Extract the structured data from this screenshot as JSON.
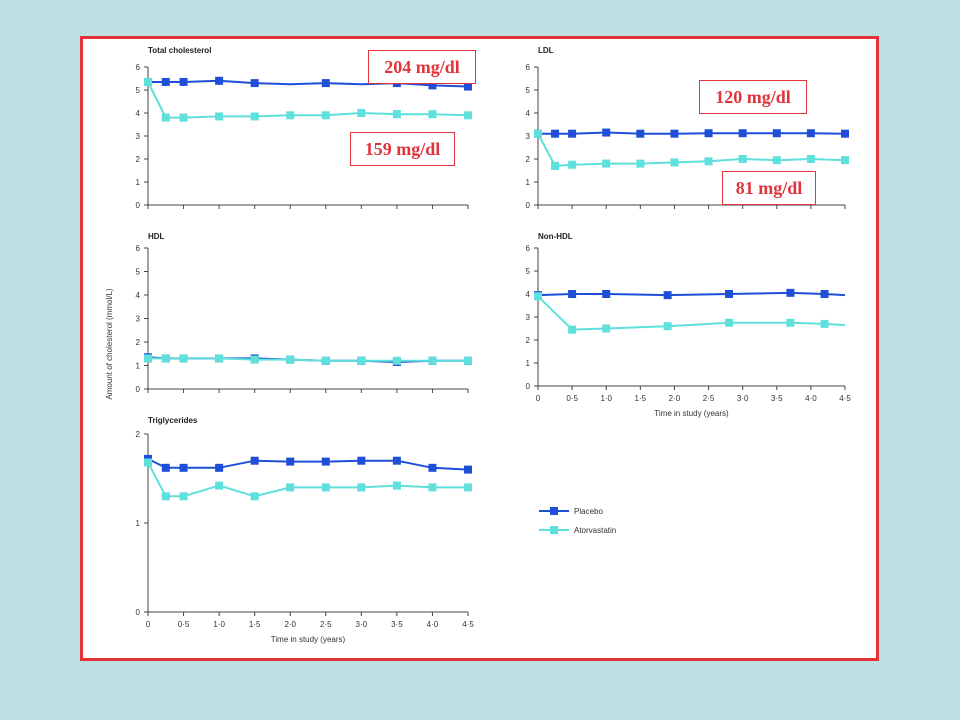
{
  "colors": {
    "background": "#bfe0e2",
    "frame_border": "#e0333a",
    "placebo": "#1f4fd6",
    "atorvastatin": "#5fe0dc",
    "callout_text": "#e0333a"
  },
  "callouts": {
    "total_placebo": "204 mg/dl",
    "total_atorvastatin": "159 mg/dl",
    "ldl_placebo": "120 mg/dl",
    "ldl_atorvastatin": "81 mg/dl"
  },
  "shared_axis": {
    "ylabel": "Amount of cholesterol (mmol/L)",
    "xlabel": "Time in study (years)"
  },
  "legend": [
    {
      "label": "Placebo",
      "color": "#1f4fd6"
    },
    {
      "label": "Atorvastatin",
      "color": "#5fe0dc"
    }
  ],
  "chart_data": [
    {
      "id": "total",
      "type": "line",
      "title": "Total cholesterol",
      "ylim": [
        0,
        6
      ],
      "yticks": [
        "0",
        "1",
        "2",
        "3",
        "4",
        "5",
        "6"
      ],
      "xlim": [
        0,
        4.5
      ],
      "xticks": [],
      "xlabel": "",
      "series": [
        {
          "name": "Placebo",
          "x": [
            0,
            0.25,
            0.5,
            1.0,
            1.5,
            2.0,
            2.5,
            3.0,
            3.5,
            4.0,
            4.5
          ],
          "y": [
            5.35,
            5.35,
            5.35,
            5.4,
            5.3,
            5.25,
            5.3,
            5.25,
            5.3,
            5.2,
            5.15
          ],
          "markers": [
            0,
            1,
            2,
            3,
            4,
            6,
            8,
            9,
            10
          ]
        },
        {
          "name": "Atorvastatin",
          "x": [
            0,
            0.25,
            0.5,
            1.0,
            1.5,
            2.0,
            2.5,
            3.0,
            3.5,
            4.0,
            4.5
          ],
          "y": [
            5.35,
            3.8,
            3.8,
            3.85,
            3.85,
            3.9,
            3.9,
            4.0,
            3.95,
            3.95,
            3.9
          ],
          "markers": [
            0,
            1,
            2,
            3,
            4,
            5,
            6,
            7,
            8,
            9,
            10
          ]
        }
      ]
    },
    {
      "id": "ldl",
      "type": "line",
      "title": "LDL",
      "ylim": [
        0,
        6
      ],
      "yticks": [
        "0",
        "1",
        "2",
        "3",
        "4",
        "5",
        "6"
      ],
      "xlim": [
        0,
        4.5
      ],
      "xticks": [],
      "xlabel": "",
      "series": [
        {
          "name": "Placebo",
          "x": [
            0,
            0.25,
            0.5,
            1.0,
            1.5,
            2.0,
            2.5,
            3.0,
            3.5,
            4.0,
            4.5
          ],
          "y": [
            3.1,
            3.1,
            3.1,
            3.15,
            3.1,
            3.1,
            3.12,
            3.12,
            3.12,
            3.12,
            3.1
          ],
          "markers": [
            0,
            1,
            2,
            3,
            4,
            5,
            6,
            7,
            8,
            9,
            10
          ]
        },
        {
          "name": "Atorvastatin",
          "x": [
            0,
            0.25,
            0.5,
            1.0,
            1.5,
            2.0,
            2.5,
            3.0,
            3.5,
            4.0,
            4.5
          ],
          "y": [
            3.1,
            1.7,
            1.75,
            1.8,
            1.8,
            1.85,
            1.9,
            2.0,
            1.95,
            2.0,
            1.95
          ],
          "markers": [
            0,
            1,
            2,
            3,
            4,
            5,
            6,
            7,
            8,
            9,
            10
          ]
        }
      ]
    },
    {
      "id": "hdl",
      "type": "line",
      "title": "HDL",
      "ylim": [
        0,
        6
      ],
      "yticks": [
        "0",
        "1",
        "2",
        "3",
        "4",
        "5",
        "6"
      ],
      "xlim": [
        0,
        4.5
      ],
      "xticks": [],
      "xlabel": "",
      "series": [
        {
          "name": "Placebo",
          "x": [
            0,
            0.25,
            0.5,
            1.0,
            1.5,
            2.0,
            2.5,
            3.0,
            3.5,
            4.0,
            4.5
          ],
          "y": [
            1.35,
            1.3,
            1.3,
            1.3,
            1.3,
            1.25,
            1.2,
            1.2,
            1.15,
            1.2,
            1.2
          ],
          "markers": [
            0,
            1,
            2,
            3,
            4,
            5,
            6,
            7,
            8,
            9,
            10
          ]
        },
        {
          "name": "Atorvastatin",
          "x": [
            0,
            0.25,
            0.5,
            1.0,
            1.5,
            2.0,
            2.5,
            3.0,
            3.5,
            4.0,
            4.5
          ],
          "y": [
            1.3,
            1.3,
            1.3,
            1.3,
            1.25,
            1.25,
            1.2,
            1.2,
            1.2,
            1.2,
            1.2
          ],
          "markers": [
            0,
            1,
            2,
            3,
            4,
            5,
            6,
            7,
            8,
            9,
            10
          ]
        }
      ]
    },
    {
      "id": "nonhdl",
      "type": "line",
      "title": "Non-HDL",
      "ylim": [
        0,
        6
      ],
      "yticks": [
        "0",
        "1",
        "2",
        "3",
        "4",
        "5",
        "6"
      ],
      "xlim": [
        0,
        4.5
      ],
      "xticks": [
        "0",
        "0·5",
        "1·0",
        "1·5",
        "2·0",
        "2·5",
        "3·0",
        "3·5",
        "4·0",
        "4·5"
      ],
      "xlabel": "Time in study (years)",
      "series": [
        {
          "name": "Placebo",
          "x": [
            0,
            0.5,
            1.0,
            1.9,
            2.8,
            3.7,
            4.2,
            4.5
          ],
          "y": [
            3.95,
            4.0,
            4.0,
            3.95,
            4.0,
            4.05,
            4.0,
            3.95
          ],
          "markers": [
            0,
            1,
            2,
            3,
            4,
            5,
            6
          ]
        },
        {
          "name": "Atorvastatin",
          "x": [
            0,
            0.5,
            1.0,
            1.9,
            2.8,
            3.7,
            4.2,
            4.5
          ],
          "y": [
            3.9,
            2.45,
            2.5,
            2.6,
            2.75,
            2.75,
            2.7,
            2.65
          ],
          "markers": [
            0,
            1,
            2,
            3,
            4,
            5,
            6
          ]
        }
      ]
    },
    {
      "id": "tg",
      "type": "line",
      "title": "Triglycerides",
      "ylim": [
        0,
        2
      ],
      "yticks": [
        "0",
        "1",
        "2"
      ],
      "xlim": [
        0,
        4.5
      ],
      "xticks": [
        "0",
        "0·5",
        "1·0",
        "1·5",
        "2·0",
        "2·5",
        "3·0",
        "3·5",
        "4·0",
        "4·5"
      ],
      "xlabel": "Time in study (years)",
      "series": [
        {
          "name": "Placebo",
          "x": [
            0,
            0.25,
            0.5,
            1.0,
            1.5,
            2.0,
            2.5,
            3.0,
            3.5,
            4.0,
            4.5
          ],
          "y": [
            1.72,
            1.62,
            1.62,
            1.62,
            1.7,
            1.69,
            1.69,
            1.7,
            1.7,
            1.62,
            1.6
          ],
          "markers": [
            0,
            1,
            2,
            3,
            4,
            5,
            6,
            7,
            8,
            9,
            10
          ]
        },
        {
          "name": "Atorvastatin",
          "x": [
            0,
            0.25,
            0.5,
            1.0,
            1.5,
            2.0,
            2.5,
            3.0,
            3.5,
            4.0,
            4.5
          ],
          "y": [
            1.68,
            1.3,
            1.3,
            1.42,
            1.3,
            1.4,
            1.4,
            1.4,
            1.42,
            1.4,
            1.4
          ],
          "markers": [
            0,
            1,
            2,
            3,
            4,
            5,
            6,
            7,
            8,
            9,
            10
          ]
        }
      ]
    }
  ]
}
